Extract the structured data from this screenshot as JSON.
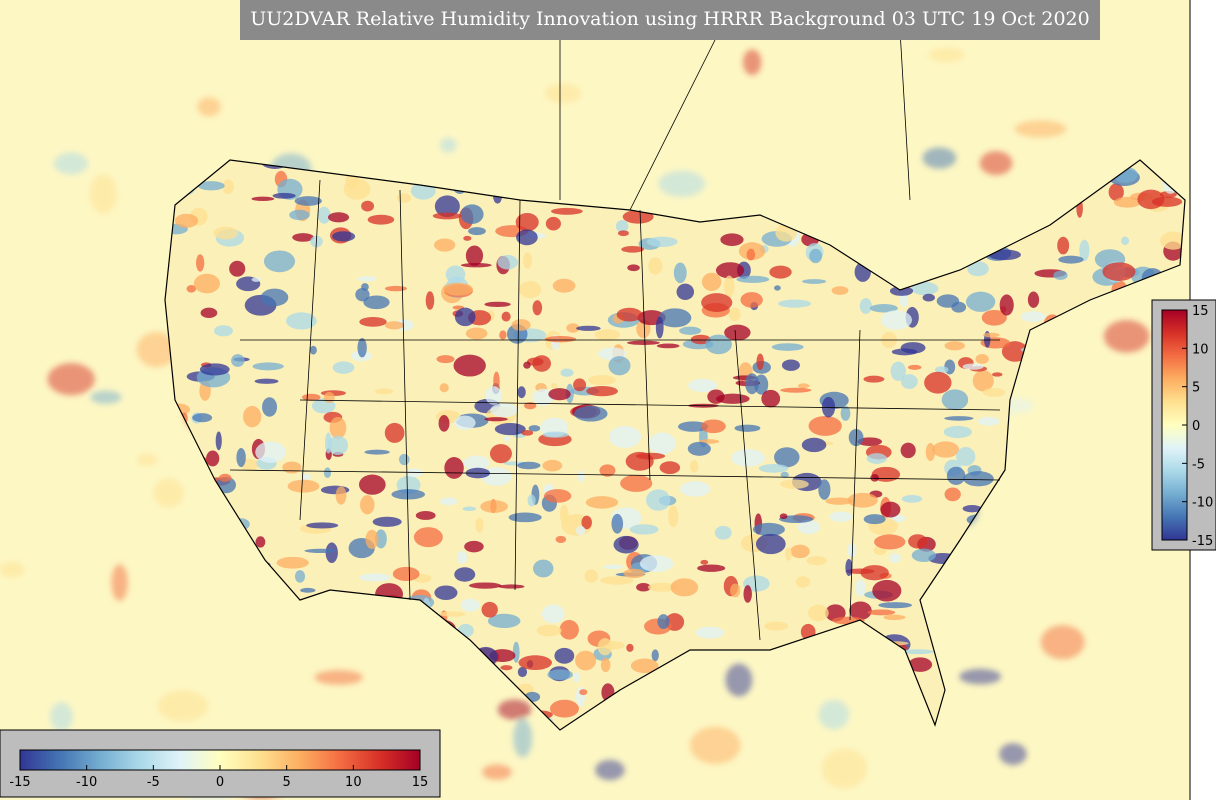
{
  "title": "UU2DVAR Relative Humidity Innovation using HRRR Background 03 UTC 19 Oct 2020",
  "colorbars": [
    {
      "orientation": "vertical",
      "ticks": [
        15,
        10,
        5,
        0,
        -5,
        -10,
        -15
      ]
    },
    {
      "orientation": "horizontal",
      "ticks": [
        -15,
        -10,
        -5,
        0,
        5,
        10,
        15
      ]
    }
  ]
}
